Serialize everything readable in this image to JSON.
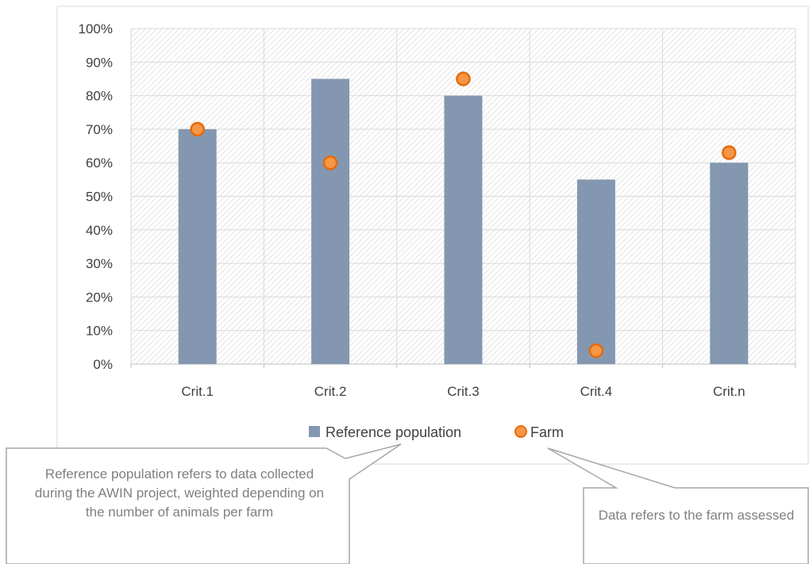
{
  "chart_data": {
    "type": "bar",
    "categories": [
      "Crit.1",
      "Crit.2",
      "Crit.3",
      "Crit.4",
      "Crit.n"
    ],
    "series": [
      {
        "name": "Reference population",
        "kind": "bar",
        "color": "#8497b0",
        "values": [
          70,
          85,
          80,
          55,
          60
        ]
      },
      {
        "name": "Farm",
        "kind": "marker",
        "color": "#f79646",
        "values": [
          70,
          60,
          85,
          4,
          63
        ]
      }
    ],
    "ylim": [
      0,
      100
    ],
    "yticks": [
      "0%",
      "10%",
      "20%",
      "30%",
      "40%",
      "50%",
      "60%",
      "70%",
      "80%",
      "90%",
      "100%"
    ],
    "grid": true,
    "legend_position": "bottom"
  },
  "callouts": {
    "reference": "Reference population refers to data collected during the AWIN project, weighted depending on the number of animals per farm",
    "farm": "Data refers to the farm assessed"
  },
  "colors": {
    "bar": "#8497b0",
    "marker_fill": "#f79646",
    "marker_edge": "#c0504d",
    "grid": "#d9d9d9",
    "hatch": "#d0d0d0",
    "callout_border": "#a6a6a6"
  }
}
